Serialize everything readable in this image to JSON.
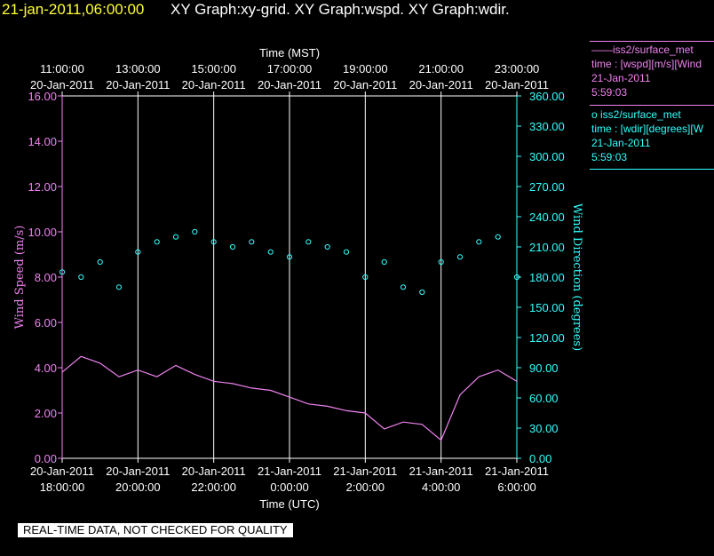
{
  "header": {
    "date_time": "21-jan-2011,06:00:00",
    "graphs": "XY Graph:xy-grid.  XY Graph:wspd.  XY Graph:wdir."
  },
  "legend": {
    "wspd": {
      "line1": "——iss2/surface_met",
      "line2": "time : [wspd][m/s][Wind",
      "line3": "21-Jan-2011",
      "line4": "5:59:03",
      "color": "#ee82ee"
    },
    "wdir": {
      "line1": "o  iss2/surface_met",
      "line2": "time : [wdir][degrees][W",
      "line3": "21-Jan-2011",
      "line4": "5:59:03",
      "color": "#33ffff"
    }
  },
  "footer": {
    "qc_notice": "REAL-TIME DATA, NOT CHECKED FOR QUALITY"
  },
  "chart_data": {
    "type": "line",
    "top_axis_label": "Time (MST)",
    "bottom_axis_label": "Time (UTC)",
    "top_ticks": [
      {
        "time": "11:00:00",
        "date": "20-Jan-2011"
      },
      {
        "time": "13:00:00",
        "date": "20-Jan-2011"
      },
      {
        "time": "15:00:00",
        "date": "20-Jan-2011"
      },
      {
        "time": "17:00:00",
        "date": "20-Jan-2011"
      },
      {
        "time": "19:00:00",
        "date": "20-Jan-2011"
      },
      {
        "time": "21:00:00",
        "date": "20-Jan-2011"
      },
      {
        "time": "23:00:00",
        "date": "20-Jan-2011"
      }
    ],
    "bottom_ticks": [
      {
        "date": "20-Jan-2011",
        "time": "18:00:00"
      },
      {
        "date": "20-Jan-2011",
        "time": "20:00:00"
      },
      {
        "date": "20-Jan-2011",
        "time": "22:00:00"
      },
      {
        "date": "21-Jan-2011",
        "time": "0:00:00"
      },
      {
        "date": "21-Jan-2011",
        "time": "2:00:00"
      },
      {
        "date": "21-Jan-2011",
        "time": "4:00:00"
      },
      {
        "date": "21-Jan-2011",
        "time": "6:00:00"
      }
    ],
    "grid": "vertical",
    "y_left": {
      "label": "Wind Speed (m/s)",
      "range": [
        0,
        16
      ],
      "ticks": [
        "0.00",
        "2.00",
        "4.00",
        "6.00",
        "8.00",
        "10.00",
        "12.00",
        "14.00",
        "16.00"
      ],
      "color": "#ee82ee"
    },
    "y_right": {
      "label": "Wind Direction (degrees)",
      "range": [
        0,
        360
      ],
      "ticks": [
        "0.00",
        "30.00",
        "60.00",
        "90.00",
        "120.00",
        "150.00",
        "180.00",
        "210.00",
        "240.00",
        "270.00",
        "300.00",
        "330.00",
        "360.00"
      ],
      "color": "#33ffff"
    },
    "series": [
      {
        "name": "iss2/surface_met wspd",
        "axis": "left",
        "style": "line",
        "x_hours_utc_since_2011-01-20T18:00": [
          0,
          0.5,
          1,
          1.5,
          2,
          2.5,
          3,
          3.5,
          4,
          4.5,
          5,
          5.5,
          6,
          6.5,
          7,
          7.5,
          8,
          8.5,
          9,
          9.5,
          10,
          10.5,
          11,
          11.5,
          12
        ],
        "values": [
          3.8,
          4.5,
          4.2,
          3.6,
          3.9,
          3.6,
          4.1,
          3.7,
          3.4,
          3.3,
          3.1,
          3.0,
          2.7,
          2.4,
          2.3,
          2.1,
          2.0,
          1.3,
          1.6,
          1.5,
          0.8,
          2.8,
          3.6,
          3.9,
          3.4
        ]
      },
      {
        "name": "iss2/surface_met wdir",
        "axis": "right",
        "style": "scatter",
        "x_hours_utc_since_2011-01-20T18:00": [
          0,
          0.5,
          1,
          1.5,
          2,
          2.5,
          3,
          3.5,
          4,
          4.5,
          5,
          5.5,
          6,
          6.5,
          7,
          7.5,
          8,
          8.5,
          9,
          9.5,
          10,
          10.5,
          11,
          11.5,
          12
        ],
        "values": [
          185,
          180,
          195,
          170,
          205,
          215,
          220,
          225,
          215,
          210,
          215,
          205,
          200,
          215,
          210,
          205,
          180,
          195,
          170,
          165,
          195,
          200,
          215,
          220,
          180
        ]
      }
    ]
  }
}
